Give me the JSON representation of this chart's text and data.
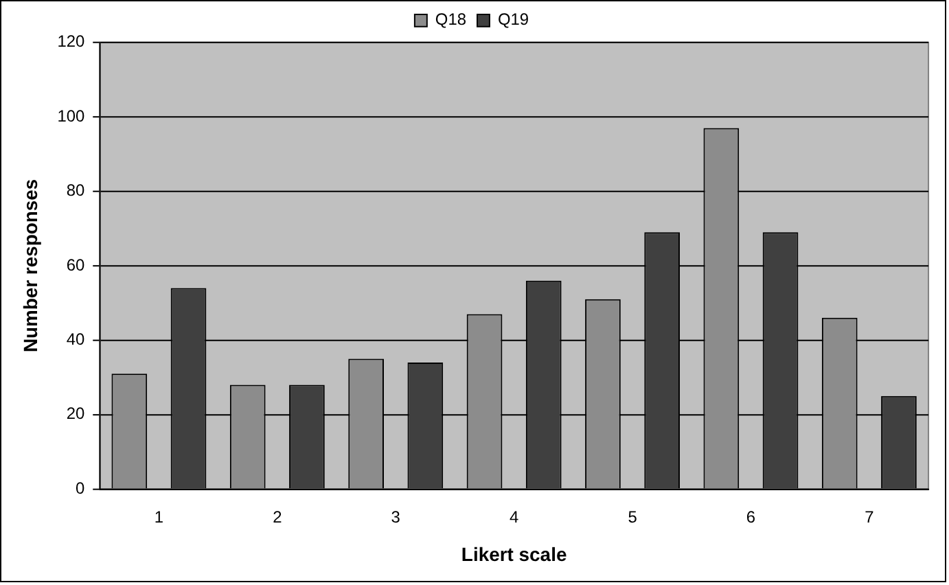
{
  "chart_data": {
    "type": "bar",
    "xlabel": "Likert scale",
    "ylabel": "Number responses",
    "categories": [
      "1",
      "2",
      "3",
      "4",
      "5",
      "6",
      "7"
    ],
    "series": [
      {
        "name": "Q18",
        "color": "#8c8c8c",
        "values": [
          31,
          28,
          35,
          47,
          51,
          97,
          46
        ]
      },
      {
        "name": "Q19",
        "color": "#404040",
        "values": [
          54,
          28,
          34,
          56,
          69,
          69,
          25
        ]
      }
    ],
    "ylim": [
      0,
      120
    ],
    "yticks": [
      0,
      20,
      40,
      60,
      80,
      100,
      120
    ],
    "grid": "y",
    "legend": "top"
  }
}
